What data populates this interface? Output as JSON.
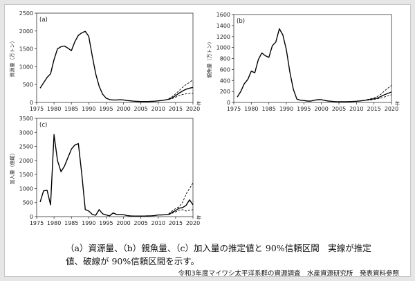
{
  "caption": {
    "line1": "（a）資源量、（b）親魚量、（c）加入量の推定値と 90%信頼区間　実線が推定",
    "line2": "値、破線が 90%信頼区間を示す。"
  },
  "credit": "令和3年度マイワシ太平洋系群の資源調査　水産資源研究所　発表資料参照",
  "chart_data": [
    {
      "type": "line",
      "panel_label": "(a)",
      "ylabel": "資源量（万トン）",
      "x_unit": "年",
      "xlim": [
        1975,
        2020
      ],
      "ylim": [
        0,
        2500
      ],
      "xticks": [
        "1975",
        "1980",
        "1985",
        "1990",
        "1995",
        "2000",
        "2005",
        "2010",
        "2015",
        "2020"
      ],
      "yticks": [
        "0",
        "500",
        "1000",
        "1500",
        "2000",
        "2500"
      ],
      "series": [
        {
          "style": "solid",
          "points": [
            [
              1976,
              400
            ],
            [
              1977,
              550
            ],
            [
              1978,
              700
            ],
            [
              1979,
              800
            ],
            [
              1980,
              1200
            ],
            [
              1981,
              1500
            ],
            [
              1982,
              1560
            ],
            [
              1983,
              1580
            ],
            [
              1984,
              1520
            ],
            [
              1985,
              1450
            ],
            [
              1986,
              1700
            ],
            [
              1987,
              1880
            ],
            [
              1988,
              1950
            ],
            [
              1989,
              1990
            ],
            [
              1990,
              1850
            ],
            [
              1991,
              1300
            ],
            [
              1992,
              800
            ],
            [
              1993,
              450
            ],
            [
              1994,
              230
            ],
            [
              1995,
              120
            ],
            [
              1996,
              80
            ],
            [
              1997,
              70
            ],
            [
              1998,
              70
            ],
            [
              1999,
              75
            ],
            [
              2000,
              70
            ],
            [
              2001,
              55
            ],
            [
              2002,
              45
            ],
            [
              2003,
              35
            ],
            [
              2004,
              30
            ],
            [
              2005,
              25
            ],
            [
              2006,
              25
            ],
            [
              2007,
              25
            ],
            [
              2008,
              30
            ],
            [
              2009,
              35
            ],
            [
              2010,
              45
            ],
            [
              2011,
              55
            ],
            [
              2012,
              70
            ],
            [
              2013,
              90
            ],
            [
              2014,
              130
            ],
            [
              2015,
              190
            ],
            [
              2016,
              260
            ],
            [
              2017,
              320
            ],
            [
              2018,
              370
            ],
            [
              2019,
              400
            ],
            [
              2020,
              420
            ]
          ]
        },
        {
          "style": "dashed",
          "points": [
            [
              2013,
              100
            ],
            [
              2014,
              160
            ],
            [
              2015,
              240
            ],
            [
              2016,
              330
            ],
            [
              2017,
              420
            ],
            [
              2018,
              500
            ],
            [
              2019,
              560
            ],
            [
              2020,
              640
            ]
          ]
        },
        {
          "style": "dashed",
          "points": [
            [
              2013,
              80
            ],
            [
              2014,
              110
            ],
            [
              2015,
              150
            ],
            [
              2016,
              190
            ],
            [
              2017,
              220
            ],
            [
              2018,
              240
            ],
            [
              2019,
              250
            ],
            [
              2020,
              250
            ]
          ]
        }
      ]
    },
    {
      "type": "line",
      "panel_label": "(b)",
      "ylabel": "親魚量（万トン）",
      "x_unit": "年",
      "xlim": [
        1975,
        2020
      ],
      "ylim": [
        0,
        1600
      ],
      "xticks": [
        "1975",
        "1980",
        "1985",
        "1990",
        "1995",
        "2000",
        "2005",
        "2010",
        "2015",
        "2020"
      ],
      "yticks": [
        "0",
        "200",
        "400",
        "600",
        "800",
        "1000",
        "1200",
        "1400",
        "1600"
      ],
      "series": [
        {
          "style": "solid",
          "points": [
            [
              1976,
              100
            ],
            [
              1977,
              200
            ],
            [
              1978,
              340
            ],
            [
              1979,
              420
            ],
            [
              1980,
              570
            ],
            [
              1981,
              540
            ],
            [
              1982,
              780
            ],
            [
              1983,
              900
            ],
            [
              1984,
              850
            ],
            [
              1985,
              820
            ],
            [
              1986,
              1030
            ],
            [
              1987,
              1100
            ],
            [
              1988,
              1340
            ],
            [
              1989,
              1230
            ],
            [
              1990,
              960
            ],
            [
              1991,
              550
            ],
            [
              1992,
              240
            ],
            [
              1993,
              60
            ],
            [
              1994,
              40
            ],
            [
              1995,
              35
            ],
            [
              1996,
              25
            ],
            [
              1997,
              25
            ],
            [
              1998,
              40
            ],
            [
              1999,
              50
            ],
            [
              2000,
              50
            ],
            [
              2001,
              35
            ],
            [
              2002,
              25
            ],
            [
              2003,
              20
            ],
            [
              2004,
              15
            ],
            [
              2005,
              12
            ],
            [
              2006,
              12
            ],
            [
              2007,
              12
            ],
            [
              2008,
              15
            ],
            [
              2009,
              18
            ],
            [
              2010,
              22
            ],
            [
              2011,
              28
            ],
            [
              2012,
              35
            ],
            [
              2013,
              45
            ],
            [
              2014,
              55
            ],
            [
              2015,
              65
            ],
            [
              2016,
              80
            ],
            [
              2017,
              110
            ],
            [
              2018,
              140
            ],
            [
              2019,
              165
            ],
            [
              2020,
              190
            ]
          ]
        },
        {
          "style": "dashed",
          "points": [
            [
              2013,
              50
            ],
            [
              2014,
              65
            ],
            [
              2015,
              85
            ],
            [
              2016,
              110
            ],
            [
              2017,
              150
            ],
            [
              2018,
              210
            ],
            [
              2019,
              260
            ],
            [
              2020,
              310
            ]
          ]
        },
        {
          "style": "dashed",
          "points": [
            [
              2013,
              40
            ],
            [
              2014,
              45
            ],
            [
              2015,
              55
            ],
            [
              2016,
              65
            ],
            [
              2017,
              80
            ],
            [
              2018,
              100
            ],
            [
              2019,
              120
            ],
            [
              2020,
              140
            ]
          ]
        }
      ]
    },
    {
      "type": "line",
      "panel_label": "(c)",
      "ylabel": "加入量（億尾）",
      "x_unit": "年",
      "xlim": [
        1975,
        2020
      ],
      "ylim": [
        0,
        3500
      ],
      "xticks": [
        "1975",
        "1980",
        "1985",
        "1990",
        "1995",
        "2000",
        "2005",
        "2010",
        "2015",
        "2020"
      ],
      "yticks": [
        "0",
        "500",
        "1000",
        "1500",
        "2000",
        "2500",
        "3000",
        "3500"
      ],
      "series": [
        {
          "style": "solid",
          "points": [
            [
              1976,
              520
            ],
            [
              1977,
              920
            ],
            [
              1978,
              940
            ],
            [
              1979,
              420
            ],
            [
              1980,
              2920
            ],
            [
              1981,
              2000
            ],
            [
              1982,
              1600
            ],
            [
              1983,
              1800
            ],
            [
              1984,
              2100
            ],
            [
              1985,
              2400
            ],
            [
              1986,
              2550
            ],
            [
              1987,
              2600
            ],
            [
              1988,
              1500
            ],
            [
              1989,
              250
            ],
            [
              1990,
              200
            ],
            [
              1991,
              80
            ],
            [
              1992,
              50
            ],
            [
              1993,
              250
            ],
            [
              1994,
              100
            ],
            [
              1995,
              60
            ],
            [
              1996,
              30
            ],
            [
              1997,
              130
            ],
            [
              1998,
              80
            ],
            [
              1999,
              80
            ],
            [
              2000,
              70
            ],
            [
              2001,
              40
            ],
            [
              2002,
              25
            ],
            [
              2003,
              20
            ],
            [
              2004,
              20
            ],
            [
              2005,
              20
            ],
            [
              2006,
              20
            ],
            [
              2007,
              25
            ],
            [
              2008,
              30
            ],
            [
              2009,
              40
            ],
            [
              2010,
              60
            ],
            [
              2011,
              60
            ],
            [
              2012,
              70
            ],
            [
              2013,
              80
            ],
            [
              2014,
              150
            ],
            [
              2015,
              220
            ],
            [
              2016,
              300
            ],
            [
              2017,
              320
            ],
            [
              2018,
              400
            ],
            [
              2019,
              600
            ],
            [
              2020,
              420
            ]
          ]
        },
        {
          "style": "dashed",
          "points": [
            [
              2013,
              100
            ],
            [
              2014,
              200
            ],
            [
              2015,
              290
            ],
            [
              2016,
              350
            ],
            [
              2017,
              500
            ],
            [
              2018,
              800
            ],
            [
              2019,
              1000
            ],
            [
              2020,
              1200
            ]
          ]
        },
        {
          "style": "dashed",
          "points": [
            [
              2013,
              70
            ],
            [
              2014,
              120
            ],
            [
              2015,
              170
            ],
            [
              2016,
              230
            ],
            [
              2017,
              250
            ],
            [
              2018,
              200
            ],
            [
              2019,
              230
            ],
            [
              2020,
              250
            ]
          ]
        }
      ]
    }
  ]
}
